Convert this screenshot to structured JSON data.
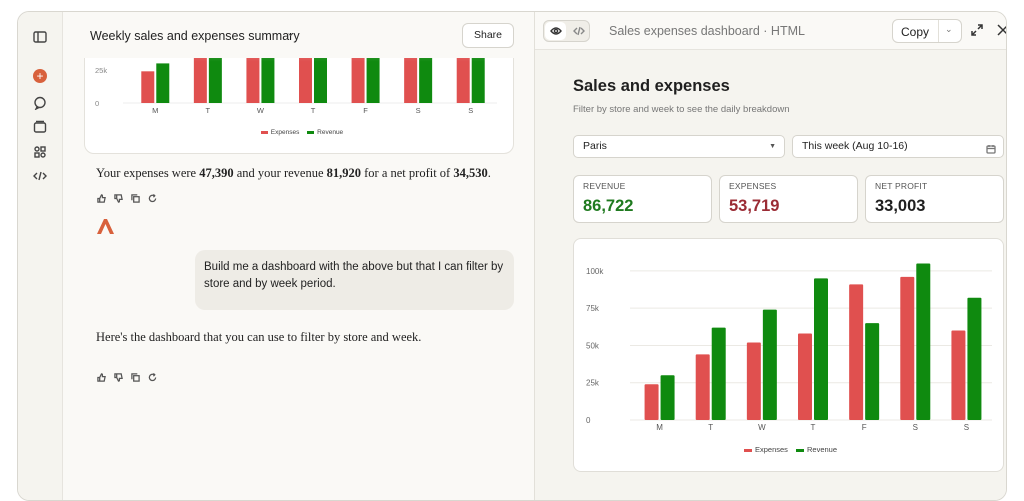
{
  "sidebar": {
    "icons": [
      "sidebar-toggle-icon",
      "new-chat-icon",
      "chats-icon",
      "projects-icon",
      "artifacts-icon",
      "code-icon"
    ],
    "new_chat_glyph": "+"
  },
  "chat": {
    "title": "Weekly sales and expenses summary",
    "title_caret": "⌄",
    "share_label": "Share",
    "mini_chart": {
      "y_ticks": [
        "25k",
        "0"
      ],
      "categories": [
        "M",
        "T",
        "W",
        "T",
        "F",
        "S",
        "S"
      ],
      "legend": [
        "Expenses",
        "Revenue"
      ]
    },
    "summary": {
      "prefix": "Your expenses were ",
      "expenses": "47,390",
      "mid": " and your revenue ",
      "revenue": "81,920",
      "mid2": " for a net profit of ",
      "profit": "34,530",
      "suffix": "."
    },
    "user_message": "Build me a dashboard with the above but that I can filter by store and by week period.",
    "reply": "Here's the dashboard that you can use to filter by store and week."
  },
  "panel": {
    "title": "Sales expenses dashboard",
    "title_suffix": " · HTML",
    "copy_label": "Copy",
    "copy_caret": "⌄"
  },
  "dashboard": {
    "title": "Sales and expenses",
    "subtitle": "Filter by store and week to see the daily breakdown",
    "store_select": "Paris",
    "week_select": "This week (Aug 10-16)",
    "kpis": [
      {
        "label": "REVENUE",
        "value": "86,722",
        "color": "#1f7a1f"
      },
      {
        "label": "EXPENSES",
        "value": "53,719",
        "color": "#9b2c35"
      },
      {
        "label": "NET PROFIT",
        "value": "33,003",
        "color": "#1f1f1f"
      }
    ]
  },
  "colors": {
    "expenses": "#e0504f",
    "revenue": "#0f8a0f",
    "accent": "#d8613c"
  },
  "chart_data": [
    {
      "type": "bar",
      "categories": [
        "M",
        "T",
        "W",
        "T",
        "F",
        "S",
        "S"
      ],
      "series": [
        {
          "name": "Expenses",
          "values": [
            24000,
            44000,
            52000,
            58000,
            91000,
            96000,
            60000
          ]
        },
        {
          "name": "Revenue",
          "values": [
            30000,
            62000,
            74000,
            95000,
            65000,
            105000,
            82000
          ]
        }
      ],
      "ytick_labels": [
        "100k",
        "75k",
        "50k",
        "25k",
        "0"
      ],
      "ylim": [
        0,
        110000
      ],
      "grid": true,
      "legend": "bottom-center"
    }
  ]
}
